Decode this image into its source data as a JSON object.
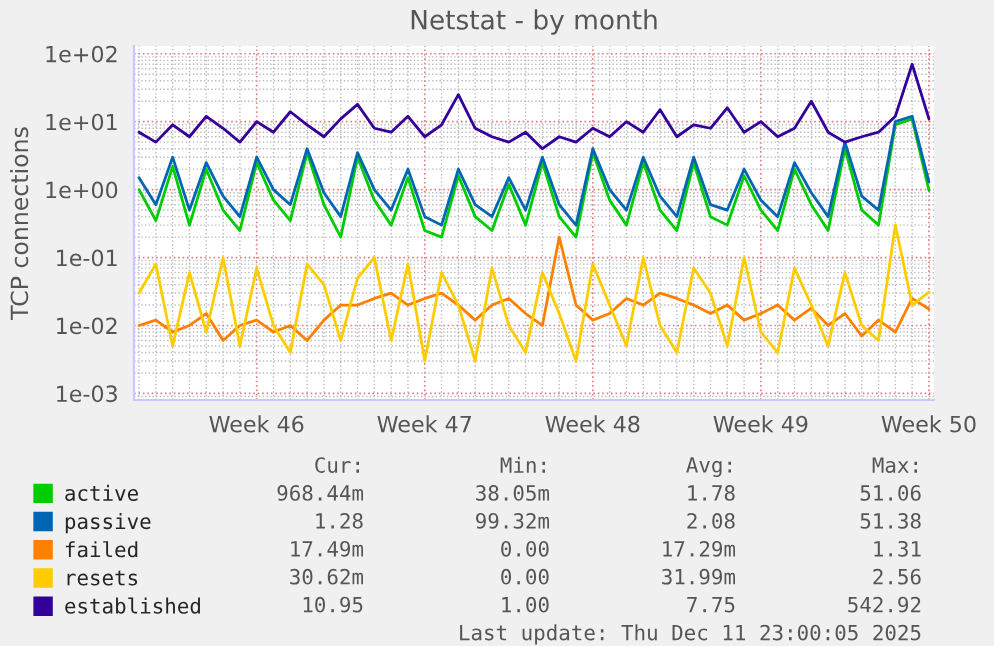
{
  "chart_data": {
    "type": "line",
    "title": "Netstat - by month",
    "ylabel": "TCP connections",
    "log": "y",
    "grid": true,
    "legend": "bottom",
    "marker": "none",
    "line_style": "solid",
    "ylim": [
      0.0008,
      130
    ],
    "yticks": [
      {
        "value": 0.001,
        "label": "1e-03"
      },
      {
        "value": 0.01,
        "label": "1e-02"
      },
      {
        "value": 0.1,
        "label": "1e-01"
      },
      {
        "value": 1,
        "label": "1e+00"
      },
      {
        "value": 10,
        "label": "1e+01"
      },
      {
        "value": 100,
        "label": "1e+02"
      }
    ],
    "categories": [
      null,
      null,
      null,
      null,
      null,
      null,
      null,
      "Week 46",
      null,
      null,
      null,
      null,
      null,
      null,
      null,
      null,
      null,
      "Week 47",
      null,
      null,
      null,
      null,
      null,
      null,
      null,
      null,
      null,
      "Week 48",
      null,
      null,
      null,
      null,
      null,
      null,
      null,
      null,
      null,
      "Week 49",
      null,
      null,
      null,
      null,
      null,
      null,
      null,
      null,
      null,
      "Week 50"
    ],
    "series": [
      {
        "name": "active",
        "color": "#00cc00",
        "values": [
          1.0,
          0.35,
          2.2,
          0.3,
          2,
          0.5,
          0.25,
          2.5,
          0.7,
          0.35,
          3.5,
          0.6,
          0.2,
          3,
          0.7,
          0.3,
          1.5,
          0.25,
          0.2,
          1.6,
          0.4,
          0.25,
          1.2,
          0.3,
          2.5,
          0.4,
          0.2,
          3.5,
          0.7,
          0.3,
          2.5,
          0.5,
          0.25,
          2.5,
          0.4,
          0.3,
          1.6,
          0.5,
          0.25,
          2,
          0.6,
          0.25,
          4,
          0.5,
          0.3,
          9,
          11,
          0.97
        ]
      },
      {
        "name": "passive",
        "color": "#0066b3",
        "values": [
          1.5,
          0.6,
          3,
          0.5,
          2.5,
          0.8,
          0.4,
          3,
          1,
          0.6,
          4,
          0.9,
          0.4,
          3.5,
          1,
          0.5,
          2,
          0.4,
          0.3,
          2,
          0.6,
          0.4,
          1.5,
          0.5,
          3,
          0.6,
          0.3,
          4,
          1,
          0.5,
          3,
          0.8,
          0.4,
          3,
          0.6,
          0.5,
          2,
          0.7,
          0.4,
          2.5,
          0.9,
          0.4,
          5,
          0.8,
          0.5,
          10,
          12,
          1.3
        ]
      },
      {
        "name": "failed",
        "color": "#ff8000",
        "values": [
          0.01,
          0.012,
          0.008,
          0.01,
          0.015,
          0.006,
          0.01,
          0.012,
          0.008,
          0.01,
          0.006,
          0.012,
          0.02,
          0.02,
          0.025,
          0.03,
          0.02,
          0.025,
          0.03,
          0.02,
          0.012,
          0.02,
          0.025,
          0.015,
          0.01,
          0.2,
          0.02,
          0.012,
          0.015,
          0.025,
          0.02,
          0.03,
          0.025,
          0.02,
          0.015,
          0.02,
          0.012,
          0.015,
          0.02,
          0.012,
          0.018,
          0.01,
          0.015,
          0.007,
          0.012,
          0.008,
          0.025,
          0.0175
        ]
      },
      {
        "name": "resets",
        "color": "#ffcc00",
        "values": [
          0.03,
          0.08,
          0.005,
          0.06,
          0.008,
          0.1,
          0.005,
          0.07,
          0.01,
          0.004,
          0.08,
          0.04,
          0.006,
          0.05,
          0.1,
          0.006,
          0.08,
          0.003,
          0.06,
          0.02,
          0.003,
          0.07,
          0.01,
          0.004,
          0.06,
          0.015,
          0.003,
          0.08,
          0.02,
          0.005,
          0.1,
          0.01,
          0.004,
          0.07,
          0.03,
          0.005,
          0.1,
          0.008,
          0.004,
          0.07,
          0.02,
          0.005,
          0.06,
          0.01,
          0.006,
          0.3,
          0.02,
          0.031
        ]
      },
      {
        "name": "established",
        "color": "#330099",
        "values": [
          7,
          5,
          9,
          6,
          12,
          8,
          5,
          10,
          7,
          14,
          9,
          6,
          11,
          18,
          8,
          7,
          12,
          6,
          9,
          25,
          8,
          6,
          5,
          7,
          4,
          6,
          5,
          8,
          6,
          10,
          7,
          15,
          6,
          9,
          8,
          16,
          7,
          10,
          6,
          8,
          20,
          7,
          5,
          6,
          7,
          12,
          70,
          11
        ]
      }
    ],
    "annotations": [
      "Cur:",
      "Min:",
      "Avg:",
      "Max:",
      "968.44m",
      "38.05m",
      "1.78",
      "51.06",
      "1.28",
      "99.32m",
      "2.08",
      "51.38",
      "17.49m",
      "0.00",
      "17.29m",
      "1.31",
      "30.62m",
      "0.00",
      "31.99m",
      "2.56",
      "10.95",
      "1.00",
      "7.75",
      "542.92",
      "Last update: Thu Dec 11 23:00:05 2025"
    ]
  }
}
